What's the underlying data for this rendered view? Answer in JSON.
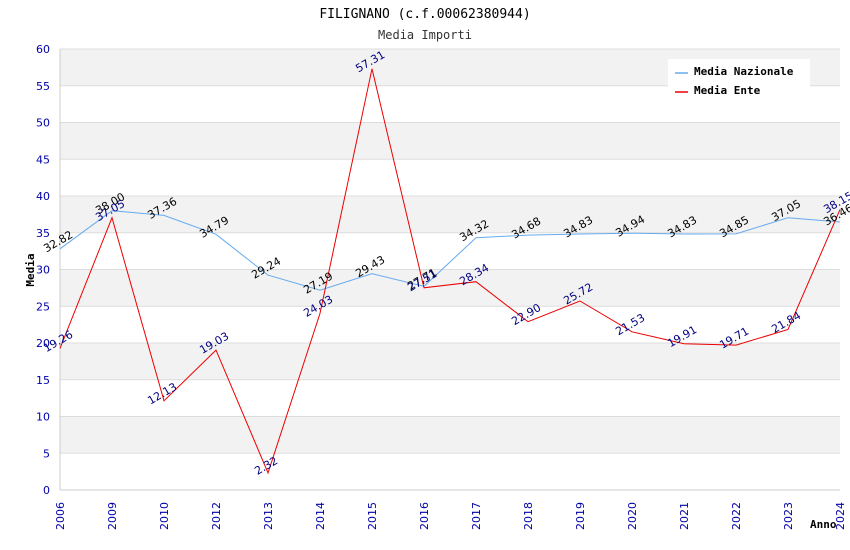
{
  "chart_data": {
    "type": "line",
    "title": "FILIGNANO (c.f.00062380944)",
    "subtitle": "Media Importi",
    "xlabel": "Anno",
    "ylabel": "Media",
    "ylim": [
      0,
      60
    ],
    "yticks": [
      0,
      5,
      10,
      15,
      20,
      25,
      30,
      35,
      40,
      45,
      50,
      55,
      60
    ],
    "categories": [
      "2006",
      "2009",
      "2010",
      "2012",
      "2013",
      "2014",
      "2015",
      "2016",
      "2017",
      "2018",
      "2019",
      "2020",
      "2021",
      "2022",
      "2023",
      "2024"
    ],
    "series": [
      {
        "name": "Media Nazionale",
        "color": "#66aaee",
        "values": [
          32.82,
          38.0,
          37.36,
          34.79,
          29.24,
          27.19,
          29.43,
          27.71,
          34.32,
          34.68,
          34.83,
          34.94,
          34.83,
          34.85,
          37.05,
          36.46
        ],
        "labels": [
          "32.82",
          "38.00",
          "37.36",
          "34.79",
          "29.24",
          "27.19",
          "29.43",
          "27.71",
          "34.32",
          "34.68",
          "34.83",
          "34.94",
          "34.83",
          "34.85",
          "37.05",
          "36.46"
        ]
      },
      {
        "name": "Media Ente",
        "color": "#ee0000",
        "values": [
          19.26,
          37.05,
          12.13,
          19.03,
          2.32,
          24.03,
          57.31,
          27.51,
          28.34,
          22.9,
          25.72,
          21.53,
          19.91,
          19.71,
          21.84,
          38.15
        ],
        "labels": [
          "19.26",
          "37.05",
          "12.13",
          "19.03",
          "2.32",
          "24.03",
          "57.31",
          "27.51",
          "28.34",
          "22.90",
          "25.72",
          "21.53",
          "19.91",
          "19.71",
          "21.84",
          "38.15"
        ]
      }
    ],
    "legend_position": "top-right",
    "grid": true
  }
}
